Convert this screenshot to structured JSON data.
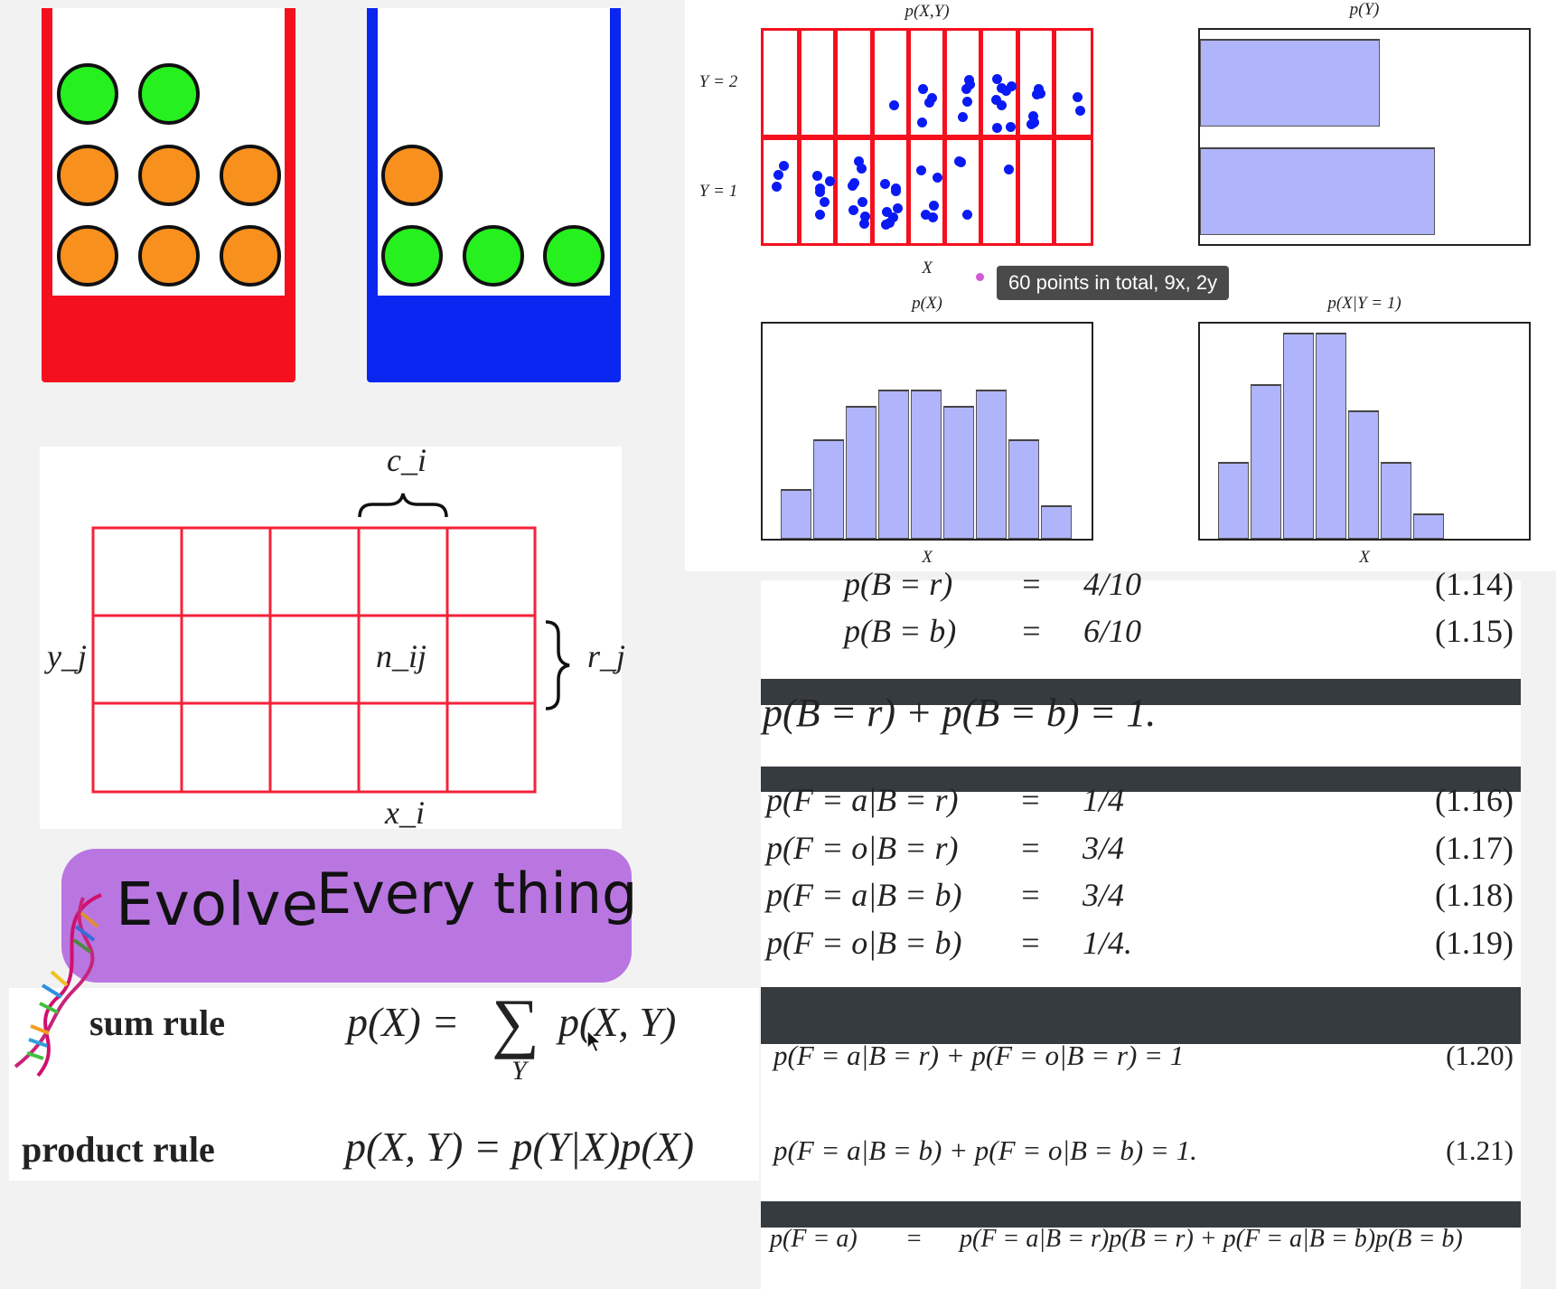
{
  "colors": {
    "red_box": "#f5101e",
    "blue_box": "#0a26f0",
    "green_ball": "#26f01e",
    "orange_ball": "#f8901e",
    "bar_fill": "#b0b4fb",
    "scatter_point": "#0a1af5",
    "banner": "#b46be0",
    "eq_divider": "#363b40"
  },
  "boxes": {
    "red": {
      "green": 2,
      "orange": 6
    },
    "blue": {
      "green": 3,
      "orange": 1
    }
  },
  "grid_diagram": {
    "col_label": "c_i",
    "cell_label": "n_ij",
    "row_label": "y_j",
    "row_sum_label": "r_j",
    "x_label": "x_i",
    "rows": 3,
    "cols": 5
  },
  "banner": {
    "text_1": "Evolve",
    "text_2": "Every thing",
    "icon": "dna-icon"
  },
  "rules": {
    "sum_label": "sum rule",
    "sum_lhs": "p(X) =",
    "sum_sigma": "∑",
    "sum_sub": "Y",
    "sum_rhs": "p(X, Y)",
    "product_label": "product rule",
    "product_formula": "p(X, Y) = p(Y|X)p(X)"
  },
  "tooltip": {
    "text": "60 points in total, 9x, 2y"
  },
  "chart_data": [
    {
      "type": "scatter",
      "title": "p(X,Y)",
      "xlabel": "X",
      "y_tick_labels": [
        "Y = 2",
        "Y = 1"
      ],
      "x_bins": 9,
      "y_bins": 2,
      "cell_counts": {
        "Y=1": [
          3,
          6,
          8,
          8,
          5,
          3,
          1,
          0,
          0
        ],
        "Y=2": [
          0,
          0,
          0,
          1,
          4,
          5,
          8,
          6,
          2
        ]
      }
    },
    {
      "type": "bar",
      "orientation": "horizontal",
      "title": "p(Y)",
      "categories": [
        "Y=2",
        "Y=1"
      ],
      "values": [
        26,
        34
      ]
    },
    {
      "type": "bar",
      "title": "p(X)",
      "xlabel": "X",
      "categories": [
        "1",
        "2",
        "3",
        "4",
        "5",
        "6",
        "7",
        "8",
        "9"
      ],
      "values": [
        3,
        6,
        8,
        9,
        9,
        8,
        9,
        6,
        2
      ]
    },
    {
      "type": "bar",
      "title": "p(X|Y = 1)",
      "xlabel": "X",
      "categories": [
        "1",
        "2",
        "3",
        "4",
        "5",
        "6",
        "7",
        "8",
        "9"
      ],
      "values": [
        3,
        6,
        8,
        8,
        5,
        3,
        1,
        0,
        0
      ]
    }
  ],
  "equations": [
    {
      "lhs": "p(B = r)",
      "eq": "=",
      "rhs": "4/10",
      "num": "(1.14)"
    },
    {
      "lhs": "p(B = b)",
      "eq": "=",
      "rhs": "6/10",
      "num": "(1.15)"
    },
    {
      "full": "p(B = r) + p(B = b) = 1."
    },
    {
      "lhs": "p(F = a|B = r)",
      "eq": "=",
      "rhs": "1/4",
      "num": "(1.16)"
    },
    {
      "lhs": "p(F = o|B = r)",
      "eq": "=",
      "rhs": "3/4",
      "num": "(1.17)"
    },
    {
      "lhs": "p(F = a|B = b)",
      "eq": "=",
      "rhs": "3/4",
      "num": "(1.18)"
    },
    {
      "lhs": "p(F = o|B = b)",
      "eq": "=",
      "rhs": "1/4.",
      "num": "(1.19)"
    },
    {
      "full": "p(F = a|B = r) + p(F = o|B = r) = 1",
      "num": "(1.20)"
    },
    {
      "full": "p(F = a|B = b) + p(F = o|B = b) = 1.",
      "num": "(1.21)"
    },
    {
      "lhs": "p(F = a)",
      "eq": "=",
      "rhs": "p(F = a|B = r)p(B = r) + p(F = a|B = b)p(B = b)"
    }
  ]
}
